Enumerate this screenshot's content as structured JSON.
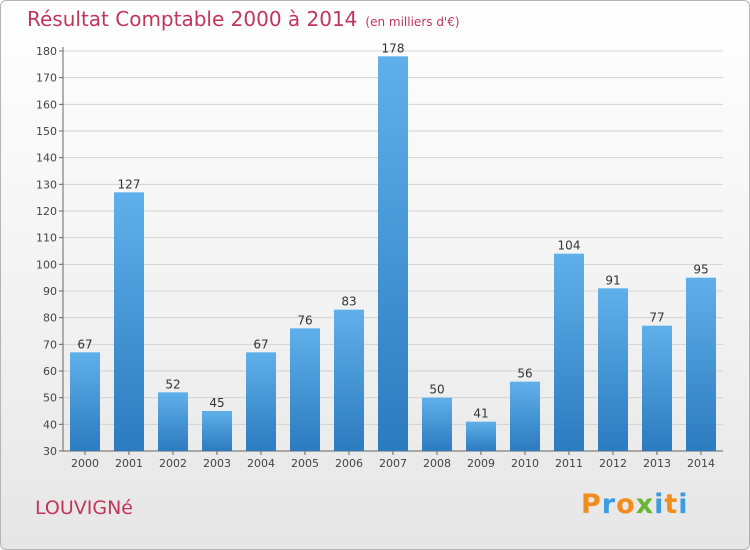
{
  "header": {
    "title": "Résultat Comptable 2000 à 2014",
    "subtitle": "(en milliers d'€)"
  },
  "commune": "LOUVIGNé",
  "logo": {
    "text": "Proxiti",
    "letters": [
      {
        "ch": "P",
        "color": "#f28c1c"
      },
      {
        "ch": "r",
        "color": "#3d9be0"
      },
      {
        "ch": "o",
        "color": "#f28c1c"
      },
      {
        "ch": "x",
        "color": "#6bb534"
      },
      {
        "ch": "i",
        "color": "#3d9be0"
      },
      {
        "ch": "t",
        "color": "#f28c1c"
      },
      {
        "ch": "i",
        "color": "#3d9be0"
      }
    ]
  },
  "chart_data": {
    "type": "bar",
    "title": "Résultat Comptable 2000 à 2014",
    "xlabel": "",
    "ylabel": "",
    "categories": [
      "2000",
      "2001",
      "2002",
      "2003",
      "2004",
      "2005",
      "2006",
      "2007",
      "2008",
      "2009",
      "2010",
      "2011",
      "2012",
      "2013",
      "2014"
    ],
    "values": [
      67,
      127,
      52,
      45,
      67,
      76,
      83,
      178,
      50,
      41,
      56,
      104,
      91,
      77,
      95
    ],
    "ylim": [
      30,
      180
    ],
    "yticks": [
      30,
      40,
      50,
      60,
      70,
      80,
      90,
      100,
      110,
      120,
      130,
      140,
      150,
      160,
      170,
      180
    ],
    "grid": true,
    "bar_color_top": "#5fb0ea",
    "bar_color_bottom": "#2b7bbf"
  }
}
